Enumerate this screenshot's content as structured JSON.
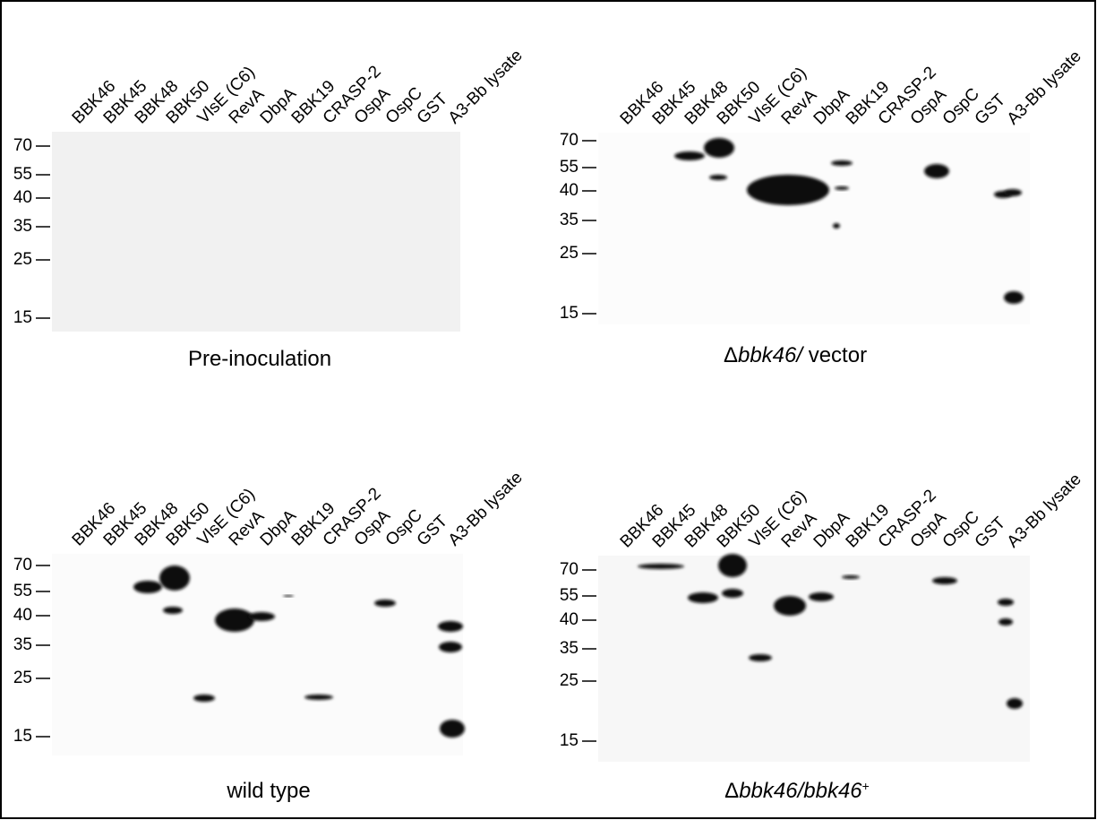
{
  "lanes": [
    "BBK46",
    "BBK45",
    "BBK48",
    "BBK50",
    "VlsE (C6)",
    "RevA",
    "DbpA",
    "BBK19",
    "CRASP-2",
    "OspA",
    "OspC",
    "GST",
    "A3-Bb lysate"
  ],
  "markers": [
    70,
    55,
    40,
    35,
    25,
    15
  ],
  "panels": [
    {
      "caption": [
        "Pre-inoculation"
      ]
    },
    {
      "caption": [
        "Δ",
        "bbk46/",
        " vector"
      ]
    },
    {
      "caption": [
        "wild type"
      ]
    },
    {
      "caption": [
        "Δ",
        "bbk46/bbk46",
        "+"
      ]
    }
  ]
}
